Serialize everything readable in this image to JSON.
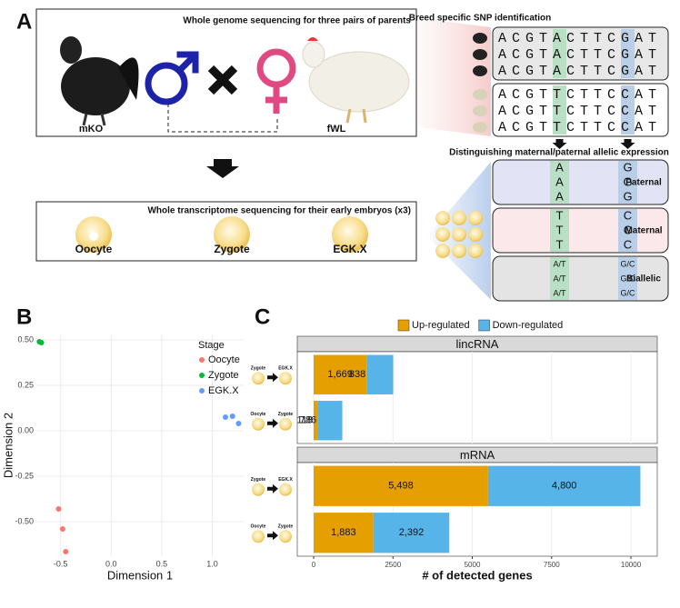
{
  "panel_labels": [
    "A",
    "B",
    "C"
  ],
  "panel_a": {
    "genome_title": "Whole genome sequencing for three pairs of parents",
    "father": "mKO",
    "mother": "fWL",
    "transcriptome_title": "Whole transcriptome sequencing for their early embryos (x3)",
    "stages": [
      "Oocyte",
      "Zygote",
      "EGK.X"
    ],
    "snp_title": "Breed specific SNP identification",
    "paternal_sequences": [
      "ACGTACTTCGAT",
      "ACGTACTTCGAT",
      "ACGTACTTCGAT"
    ],
    "maternal_sequences": [
      "ACGTTCTTCCAT",
      "ACGTTCTTCCAT",
      "ACGTTCTTCCAT"
    ],
    "expression_title": "Distinguishing maternal/paternal allelic expression",
    "groups": [
      {
        "label": "Paternal",
        "alleles": [
          [
            "A",
            "G"
          ],
          [
            "A",
            "G"
          ],
          [
            "A",
            "G"
          ]
        ]
      },
      {
        "label": "Maternal",
        "alleles": [
          [
            "T",
            "C"
          ],
          [
            "T",
            "C"
          ],
          [
            "T",
            "C"
          ]
        ]
      },
      {
        "label": "Biallelic",
        "alleles": [
          [
            "A/T",
            "G/C"
          ],
          [
            "A/T",
            "G/C"
          ],
          [
            "A/T",
            "G/C"
          ]
        ]
      }
    ]
  },
  "chart_data": [
    {
      "type": "scatter",
      "xlabel": "Dimension 1",
      "ylabel": "Dimension 2",
      "legend_title": "Stage",
      "legend": "right",
      "grid": true,
      "xlim": [
        -0.74,
        1.31
      ],
      "ylim": [
        -0.69,
        0.53
      ],
      "xticks": [
        -0.5,
        {
          "value": 0,
          "label": "0.0"
        },
        0.5,
        {
          "value": 1,
          "label": "1.0"
        }
      ],
      "yticks": [
        {
          "value": 0.5,
          "label": "0.50"
        },
        {
          "value": 0.25,
          "label": "0.25"
        },
        {
          "value": 0,
          "label": "0.00"
        },
        {
          "value": -0.25,
          "label": "-0.25"
        },
        {
          "value": -0.5,
          "label": "-0.50"
        }
      ],
      "series": [
        {
          "name": "Oocyte",
          "color": "#F8766D",
          "x": [
            -0.52,
            -0.48,
            -0.45
          ],
          "y": [
            -0.43,
            -0.54,
            -0.665
          ]
        },
        {
          "name": "Zygote",
          "color": "#00BA38",
          "x": [
            -0.71,
            -0.69
          ],
          "y": [
            0.49,
            0.485
          ]
        },
        {
          "name": "EGK.X",
          "color": "#619CFF",
          "x": [
            1.13,
            1.2,
            1.26
          ],
          "y": [
            0.075,
            0.08,
            0.04
          ]
        }
      ]
    },
    {
      "type": "bar",
      "orientation": "horizontal",
      "stacked": true,
      "legend": "top",
      "grid": true,
      "xlabel": "# of detected genes",
      "xlim": [
        -516,
        10830
      ],
      "xticks": [
        0,
        2500,
        5000,
        7500,
        10000
      ],
      "facets": [
        {
          "title": "lincRNA",
          "categories": [
            {
              "from": "Zygote",
              "to": "EGK.X"
            },
            {
              "from": "Oocyte",
              "to": "Zygote"
            }
          ],
          "series": [
            {
              "name": "Up-regulated",
              "color": "#E69F00",
              "values": [
                1669,
                118
              ],
              "value_labels": [
                "1,669",
                "118"
              ]
            },
            {
              "name": "Down-regulated",
              "color": "#56B4E9",
              "values": [
                838,
                786
              ],
              "value_labels": [
                "838",
                "786"
              ]
            }
          ]
        },
        {
          "title": "mRNA",
          "categories": [
            {
              "from": "Zygote",
              "to": "EGK.X"
            },
            {
              "from": "Oocyte",
              "to": "Zygote"
            }
          ],
          "series": [
            {
              "name": "Up-regulated",
              "color": "#E69F00",
              "values": [
                5498,
                1883
              ],
              "value_labels": [
                "5,498",
                "1,883"
              ]
            },
            {
              "name": "Down-regulated",
              "color": "#56B4E9",
              "values": [
                4800,
                2392
              ],
              "value_labels": [
                "4,800",
                "2,392"
              ]
            }
          ]
        }
      ]
    }
  ]
}
